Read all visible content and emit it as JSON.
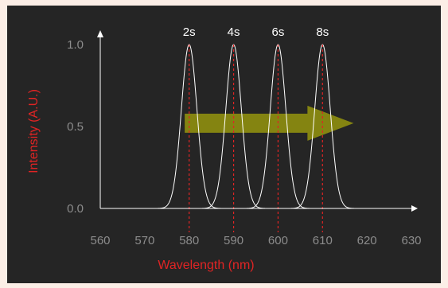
{
  "chart_data": {
    "type": "line",
    "title": "",
    "xlabel": "Wavelength (nm)",
    "ylabel": "Intensity (A.U.)",
    "xlim": [
      560,
      630
    ],
    "ylim": [
      0,
      1
    ],
    "x_ticks": [
      "560",
      "570",
      "580",
      "590",
      "600",
      "610",
      "620",
      "630"
    ],
    "y_ticks": [
      "0.0",
      "0.5",
      "1.0"
    ],
    "grid": false,
    "legend": "none",
    "series": [
      {
        "label": "2s",
        "center": 580,
        "peak": 1.0
      },
      {
        "label": "4s",
        "center": 590,
        "peak": 1.0
      },
      {
        "label": "6s",
        "center": 600,
        "peak": 1.0
      },
      {
        "label": "8s",
        "center": 610,
        "peak": 1.0
      }
    ],
    "annotations": {
      "arrow": {
        "from_x": 579,
        "to_x": 617,
        "y": 0.52
      }
    },
    "colors": {
      "curve": "#ffffff",
      "marker_line": "#e02424",
      "arrow": "#8f8f10",
      "axis_title": "#e02424",
      "tick": "#8c8c8c"
    }
  }
}
